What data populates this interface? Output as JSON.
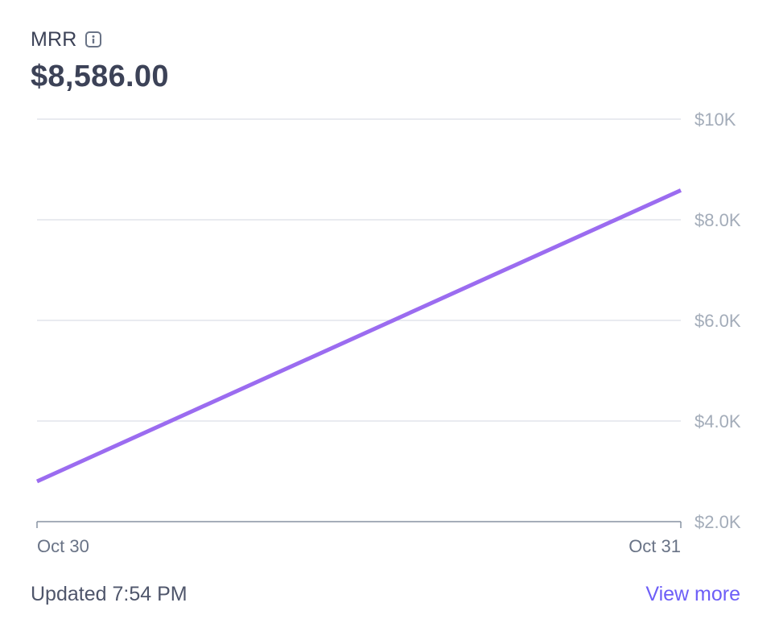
{
  "header": {
    "title": "MRR",
    "value": "$8,586.00",
    "info_icon": "info-icon"
  },
  "footer": {
    "updated": "Updated 7:54 PM",
    "view_more": "View more"
  },
  "colors": {
    "line": "#9b6cf0",
    "grid": "#dcdfe8",
    "axis": "#8792a2",
    "tick_text": "#a3acb9",
    "link": "#6d5ef7"
  },
  "chart_data": {
    "type": "line",
    "x": [
      "Oct 30",
      "Oct 31"
    ],
    "series": [
      {
        "values": [
          2800,
          8586
        ]
      }
    ],
    "y_ticks": [
      {
        "value": 10000,
        "label": "$10K"
      },
      {
        "value": 8000,
        "label": "$8.0K"
      },
      {
        "value": 6000,
        "label": "$6.0K"
      },
      {
        "value": 4000,
        "label": "$4.0K"
      },
      {
        "value": 2000,
        "label": "$2.0K"
      }
    ],
    "ylim": [
      2000,
      10000
    ],
    "grid": true,
    "axis_position": "right",
    "xlabel": "",
    "ylabel": ""
  }
}
